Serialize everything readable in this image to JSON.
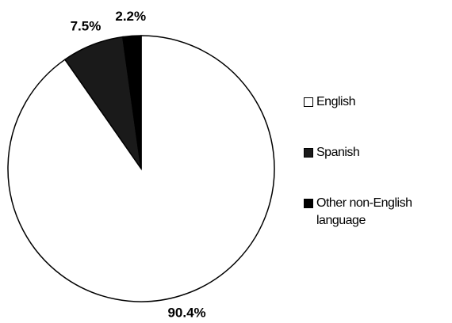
{
  "chart_data": {
    "type": "pie",
    "categories": [
      "English",
      "Spanish",
      "Other non-English language"
    ],
    "values": [
      90.4,
      7.5,
      2.2
    ],
    "value_labels": [
      "90.4%",
      "7.5%",
      "2.2%"
    ],
    "colors": [
      "#ffffff",
      "#1a1a1a",
      "#000000"
    ]
  }
}
